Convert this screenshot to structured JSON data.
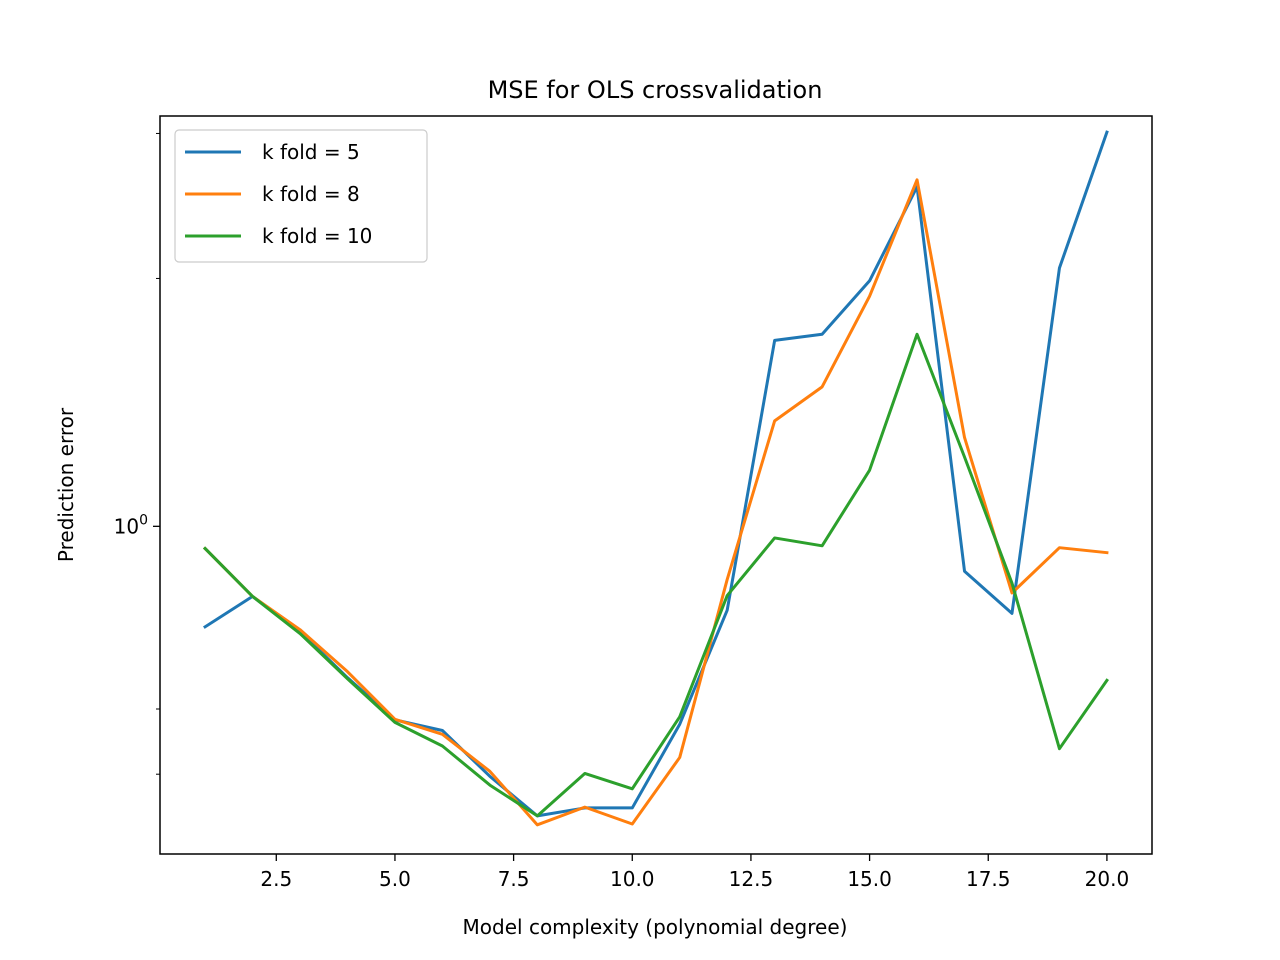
{
  "chart_data": {
    "type": "line",
    "title": "MSE for OLS crossvalidation",
    "xlabel": "Model complexity (polynomial degree)",
    "ylabel": "Prediction error",
    "yscale": "log",
    "xlim": [
      0.05,
      20.95
    ],
    "ylim": [
      0.4,
      3.15
    ],
    "x": [
      1,
      2,
      3,
      4,
      5,
      6,
      7,
      8,
      9,
      10,
      11,
      12,
      13,
      14,
      15,
      16,
      17,
      18,
      19,
      20
    ],
    "x_ticks": [
      2.5,
      5.0,
      7.5,
      10.0,
      12.5,
      15.0,
      17.5,
      20.0
    ],
    "x_tick_labels": [
      "2.5",
      "5.0",
      "7.5",
      "10.0",
      "12.5",
      "15.0",
      "17.5",
      "20.0"
    ],
    "y_major_ticks": [
      1
    ],
    "y_major_tick_labels": [
      "10^0"
    ],
    "y_minor_ticks": [
      0.5,
      0.6,
      2,
      3
    ],
    "grid": false,
    "legend_position": "upper-left",
    "series": [
      {
        "name": "k fold = 5",
        "color": "#1f77b4",
        "values": [
          0.755,
          0.822,
          0.745,
          0.655,
          0.582,
          0.565,
          0.497,
          0.445,
          0.455,
          0.455,
          0.575,
          0.791,
          1.682,
          1.711,
          1.987,
          2.585,
          0.882,
          0.784,
          2.059,
          3.011
        ]
      },
      {
        "name": "k fold = 8",
        "color": "#ff7f0e",
        "values": [
          0.94,
          0.822,
          0.749,
          0.666,
          0.583,
          0.559,
          0.504,
          0.434,
          0.456,
          0.435,
          0.524,
          0.862,
          1.343,
          1.477,
          1.903,
          2.635,
          1.282,
          0.83,
          0.942,
          0.929
        ]
      },
      {
        "name": "k fold = 10",
        "color": "#2ca02c",
        "values": [
          0.94,
          0.822,
          0.741,
          0.653,
          0.578,
          0.541,
          0.485,
          0.445,
          0.501,
          0.48,
          0.587,
          0.824,
          0.968,
          0.947,
          1.17,
          1.711,
          1.214,
          0.853,
          0.537,
          0.65
        ]
      }
    ]
  }
}
